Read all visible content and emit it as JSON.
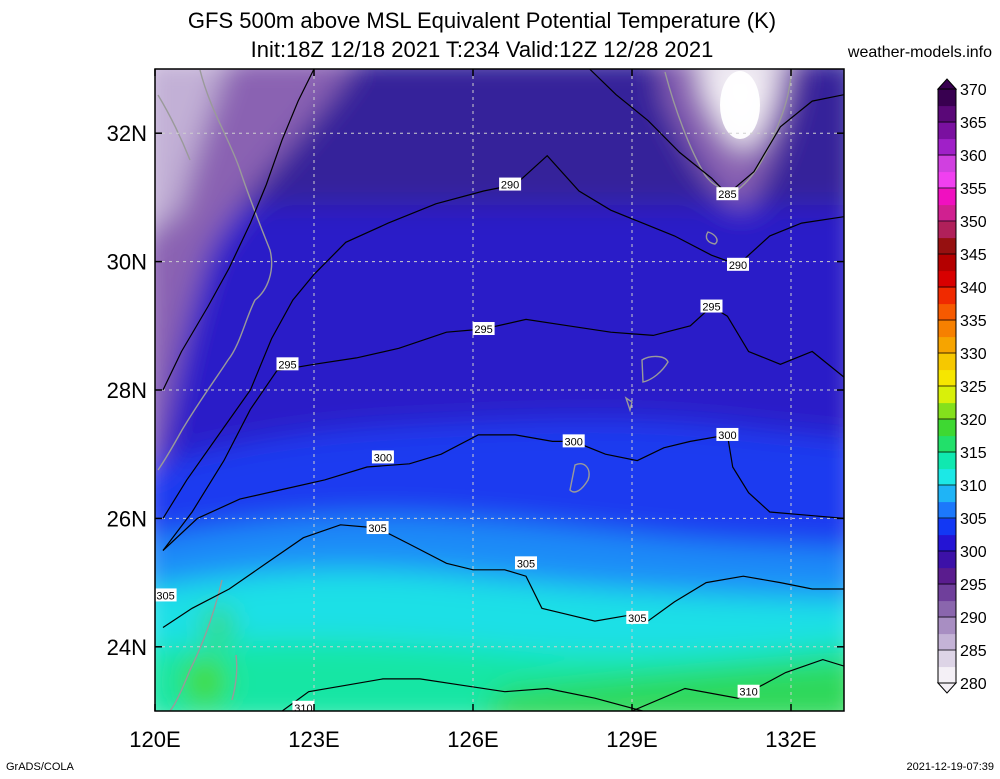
{
  "chart_data": {
    "type": "heatmap",
    "title": "GFS 500m above MSL Equivalent Potential Temperature (K)",
    "subtitle": "Init:18Z 12/18 2021 T:234 Valid:12Z 12/28 2021",
    "source": "weather-models.info",
    "credit": "GrADS/COLA",
    "timestamp": "2021-12-19-07:39",
    "xlim": [
      120,
      133
    ],
    "ylim": [
      23,
      33
    ],
    "x_ticks": [
      {
        "value": 120,
        "label": "120E"
      },
      {
        "value": 123,
        "label": "123E"
      },
      {
        "value": 126,
        "label": "126E"
      },
      {
        "value": 129,
        "label": "129E"
      },
      {
        "value": 132,
        "label": "132E"
      }
    ],
    "y_ticks": [
      {
        "value": 24,
        "label": "24N"
      },
      {
        "value": 26,
        "label": "26N"
      },
      {
        "value": 28,
        "label": "28N"
      },
      {
        "value": 30,
        "label": "30N"
      },
      {
        "value": 32,
        "label": "32N"
      }
    ],
    "grid": true,
    "colorbar": {
      "levels": [
        280,
        285,
        290,
        295,
        300,
        305,
        310,
        315,
        320,
        325,
        330,
        335,
        340,
        345,
        350,
        355,
        360,
        365,
        370
      ],
      "colors": [
        "#f4f0f6",
        "#ddd4e6",
        "#c4b3d6",
        "#a88ec2",
        "#8a66ad",
        "#6f3f9b",
        "#5a1c8e",
        "#3c11a8",
        "#2414d4",
        "#1238f4",
        "#1c78fb",
        "#1fb4f6",
        "#1ce8e6",
        "#10e8b0",
        "#22e06a",
        "#3ed832",
        "#84e01c",
        "#d8f00a",
        "#f6e600",
        "#f6c800",
        "#f6a400",
        "#f68000",
        "#f65a00",
        "#f02a00",
        "#d80000",
        "#b40000",
        "#961010",
        "#b0205a",
        "#d02090",
        "#f010c0",
        "#f040f0",
        "#d040e0",
        "#a020c8",
        "#7a10a0",
        "#5a0878",
        "#380050"
      ]
    },
    "contours": [
      {
        "level": 285,
        "points": [
          [
            120.15,
            28.0
          ],
          [
            120.5,
            28.6
          ],
          [
            121.0,
            29.3
          ],
          [
            121.4,
            29.9
          ],
          [
            121.8,
            30.6
          ],
          [
            122.1,
            31.2
          ],
          [
            122.4,
            31.9
          ],
          [
            122.7,
            32.5
          ],
          [
            123.0,
            33.0
          ]
        ],
        "labels": []
      },
      {
        "level": 285,
        "points": [
          [
            128.2,
            33.0
          ],
          [
            128.7,
            32.6
          ],
          [
            129.3,
            32.2
          ],
          [
            129.9,
            31.7
          ],
          [
            130.5,
            31.3
          ],
          [
            130.8,
            31.05
          ],
          [
            131.3,
            31.4
          ],
          [
            131.8,
            32.1
          ],
          [
            132.4,
            32.5
          ],
          [
            133.0,
            32.6
          ]
        ],
        "labels": [
          [
            130.8,
            31.05
          ]
        ]
      },
      {
        "level": 290,
        "points": [
          [
            120.15,
            26.0
          ],
          [
            120.6,
            26.6
          ],
          [
            121.2,
            27.3
          ],
          [
            121.8,
            28.0
          ],
          [
            122.2,
            28.8
          ],
          [
            122.6,
            29.4
          ],
          [
            123.0,
            29.8
          ],
          [
            123.6,
            30.3
          ],
          [
            124.4,
            30.6
          ],
          [
            125.3,
            30.9
          ],
          [
            126.2,
            31.1
          ],
          [
            126.8,
            31.2
          ],
          [
            127.4,
            31.65
          ],
          [
            128.0,
            31.1
          ],
          [
            128.6,
            30.8
          ],
          [
            129.2,
            30.6
          ],
          [
            129.8,
            30.4
          ],
          [
            130.5,
            30.1
          ],
          [
            131.0,
            29.95
          ],
          [
            131.6,
            30.4
          ],
          [
            132.2,
            30.6
          ],
          [
            133.0,
            30.7
          ]
        ],
        "labels": [
          [
            126.7,
            31.2
          ],
          [
            131.0,
            29.95
          ]
        ]
      },
      {
        "level": 295,
        "points": [
          [
            120.15,
            25.5
          ],
          [
            120.7,
            26.1
          ],
          [
            121.3,
            26.9
          ],
          [
            121.8,
            27.7
          ],
          [
            122.3,
            28.3
          ],
          [
            123.0,
            28.4
          ],
          [
            123.8,
            28.5
          ],
          [
            124.6,
            28.65
          ],
          [
            125.5,
            28.9
          ],
          [
            126.2,
            28.95
          ],
          [
            127.0,
            29.1
          ],
          [
            127.8,
            29.0
          ],
          [
            128.6,
            28.9
          ],
          [
            129.4,
            28.85
          ],
          [
            130.1,
            29.0
          ],
          [
            130.5,
            29.3
          ],
          [
            130.8,
            29.15
          ],
          [
            131.2,
            28.6
          ],
          [
            131.8,
            28.4
          ],
          [
            132.4,
            28.6
          ],
          [
            133.0,
            28.2
          ]
        ],
        "labels": [
          [
            122.5,
            28.4
          ],
          [
            126.2,
            28.95
          ],
          [
            130.5,
            29.3
          ]
        ]
      },
      {
        "level": 300,
        "points": [
          [
            120.15,
            25.5
          ],
          [
            120.8,
            26.0
          ],
          [
            121.6,
            26.3
          ],
          [
            122.4,
            26.45
          ],
          [
            123.2,
            26.6
          ],
          [
            124.0,
            26.8
          ],
          [
            124.8,
            26.85
          ],
          [
            125.4,
            27.0
          ],
          [
            126.1,
            27.3
          ],
          [
            126.8,
            27.3
          ],
          [
            127.5,
            27.2
          ],
          [
            127.9,
            27.2
          ],
          [
            128.5,
            27.0
          ],
          [
            129.1,
            26.9
          ],
          [
            129.6,
            27.1
          ],
          [
            130.1,
            27.2
          ],
          [
            130.8,
            27.3
          ],
          [
            130.9,
            26.8
          ],
          [
            131.2,
            26.4
          ],
          [
            131.6,
            26.1
          ],
          [
            132.3,
            26.05
          ],
          [
            133.0,
            26.0
          ]
        ],
        "labels": [
          [
            124.3,
            26.95
          ],
          [
            127.9,
            27.2
          ],
          [
            130.8,
            27.3
          ]
        ]
      },
      {
        "level": 305,
        "points": [
          [
            120.15,
            24.3
          ],
          [
            120.7,
            24.6
          ],
          [
            121.4,
            24.9
          ],
          [
            122.1,
            25.3
          ],
          [
            122.8,
            25.7
          ],
          [
            123.5,
            25.9
          ],
          [
            124.2,
            25.85
          ],
          [
            124.8,
            25.6
          ],
          [
            125.5,
            25.3
          ],
          [
            126.0,
            25.2
          ],
          [
            126.6,
            25.2
          ],
          [
            127.0,
            25.1
          ],
          [
            127.3,
            24.6
          ],
          [
            127.8,
            24.5
          ],
          [
            128.3,
            24.4
          ],
          [
            129.0,
            24.5
          ],
          [
            129.3,
            24.4
          ],
          [
            129.8,
            24.7
          ],
          [
            130.4,
            25.0
          ],
          [
            131.1,
            25.1
          ],
          [
            131.8,
            25.0
          ],
          [
            132.4,
            24.9
          ],
          [
            133.0,
            24.9
          ]
        ],
        "labels": [
          [
            120.2,
            24.8
          ],
          [
            124.2,
            25.85
          ],
          [
            127.0,
            25.3
          ],
          [
            129.1,
            24.45
          ]
        ]
      },
      {
        "level": 310,
        "points": [
          [
            122.4,
            23.0
          ],
          [
            122.9,
            23.3
          ],
          [
            123.6,
            23.4
          ],
          [
            124.3,
            23.5
          ],
          [
            125.0,
            23.5
          ],
          [
            125.8,
            23.4
          ],
          [
            126.6,
            23.3
          ],
          [
            127.4,
            23.35
          ],
          [
            128.3,
            23.2
          ],
          [
            129.2,
            23.0
          ]
        ],
        "labels": [
          [
            122.8,
            23.05
          ]
        ]
      },
      {
        "level": 310,
        "points": [
          [
            129.0,
            23.0
          ],
          [
            130.0,
            23.35
          ],
          [
            131.0,
            23.2
          ],
          [
            131.9,
            23.6
          ],
          [
            132.6,
            23.8
          ],
          [
            133.0,
            23.7
          ]
        ],
        "labels": [
          [
            131.2,
            23.3
          ]
        ]
      }
    ]
  }
}
